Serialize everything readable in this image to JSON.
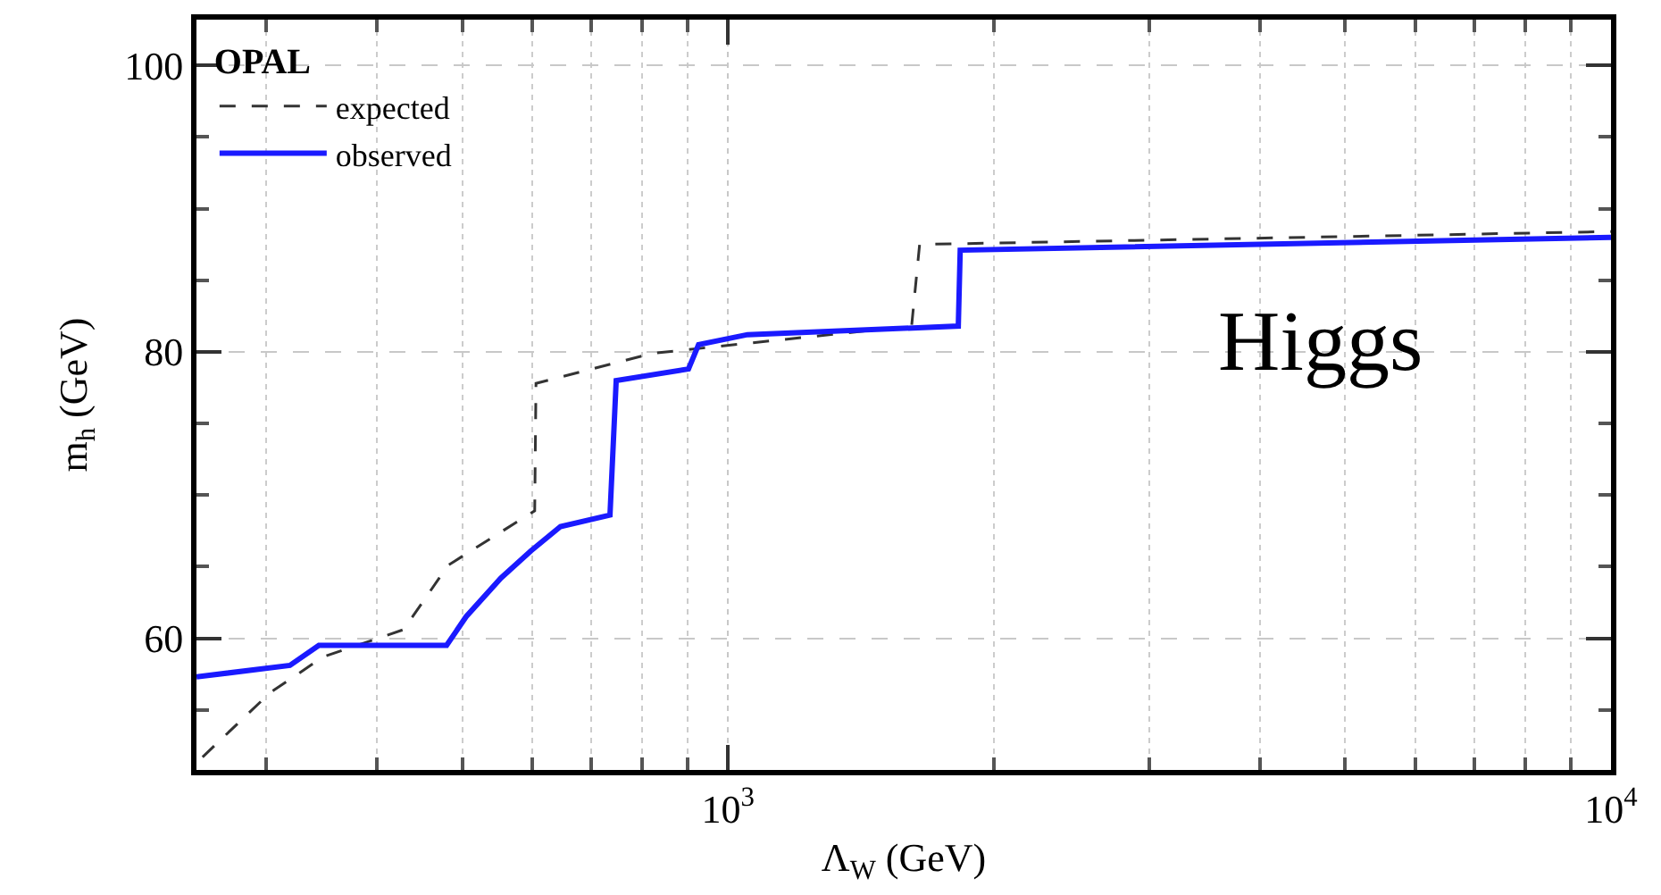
{
  "chart_data": {
    "type": "line",
    "xlabel": "Λ$_{W}$ (GeV)",
    "ylabel": "m$_{h}$ (GeV)",
    "legend_title": "OPAL",
    "annotations": [
      "Higgs"
    ],
    "log": "x",
    "grid": true,
    "legend": "top left",
    "marker": "none",
    "xlim": [
      250,
      10000
    ],
    "ylim": [
      50.8,
      103.2
    ],
    "xticks": [
      {
        "value": 300,
        "label": null
      },
      {
        "value": 400,
        "label": null
      },
      {
        "value": 500,
        "label": null
      },
      {
        "value": 600,
        "label": null
      },
      {
        "value": 700,
        "label": null
      },
      {
        "value": 800,
        "label": null
      },
      {
        "value": 900,
        "label": null
      },
      {
        "value": 1000,
        "label": "10$^{3}$"
      },
      {
        "value": 2000,
        "label": null
      },
      {
        "value": 3000,
        "label": null
      },
      {
        "value": 4000,
        "label": null
      },
      {
        "value": 5000,
        "label": null
      },
      {
        "value": 6000,
        "label": null
      },
      {
        "value": 7000,
        "label": null
      },
      {
        "value": 8000,
        "label": null
      },
      {
        "value": 9000,
        "label": null
      },
      {
        "value": 10000,
        "label": "10$^{4}$"
      }
    ],
    "yticks": [
      {
        "value": 55,
        "label": null
      },
      60,
      {
        "value": 65,
        "label": null
      },
      {
        "value": 70,
        "label": null
      },
      {
        "value": 75,
        "label": null
      },
      80,
      {
        "value": 85,
        "label": null
      },
      {
        "value": 90,
        "label": null
      },
      {
        "value": 95,
        "label": null
      },
      100
    ],
    "series": [
      {
        "name": "expected",
        "color": "#333333",
        "line_style": "dashed",
        "x": [
          254,
          303,
          348,
          429,
          482,
          604,
          606,
          822,
          1614,
          1648,
          10000
        ],
        "values": [
          51.7,
          56.2,
          58.7,
          60.6,
          65.1,
          68.9,
          77.8,
          79.9,
          81.8,
          87.5,
          88.4
        ]
      },
      {
        "name": "observed",
        "color": "#1a1aff",
        "line_style": "solid",
        "x": [
          250,
          319,
          344,
          480,
          505,
          553,
          598,
          646,
          735,
          747,
          902,
          926,
          1052,
          1823,
          1832,
          10000
        ],
        "values": [
          57.3,
          58.1,
          59.5,
          59.5,
          61.5,
          64.2,
          66.1,
          67.8,
          68.6,
          78.0,
          78.8,
          80.5,
          81.2,
          81.8,
          87.1,
          88.0
        ]
      }
    ]
  }
}
